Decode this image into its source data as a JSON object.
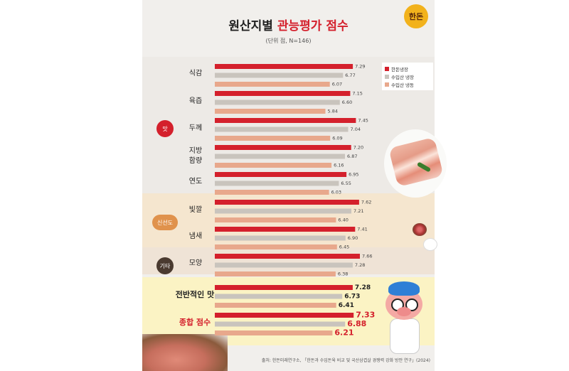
{
  "title_part1": "원산지별",
  "title_part2": "관능평가 점수",
  "subtitle": "(단위 점, N=146)",
  "logo_text": "한돈",
  "colors": {
    "hanwoo": "#d4202c",
    "import_chilled": "#c9c4bd",
    "import_frozen": "#e8a88c"
  },
  "legend": [
    "한돈냉장",
    "수입산 냉장",
    "수입산 냉동"
  ],
  "categories": {
    "taste": "맛",
    "freshness": "신선도",
    "other": "기타"
  },
  "row_labels": {
    "texture": "식감",
    "juiciness": "육즙",
    "thickness": "두께",
    "fat_aroma_1": "지방",
    "fat_aroma_2": "함량",
    "tenderness": "연도",
    "gloss": "빛깔",
    "smell": "냄새",
    "shape": "모양",
    "overall_taste": "전반적인 맛",
    "total": "종합 점수"
  },
  "chart_data": {
    "type": "bar",
    "orientation": "horizontal",
    "title": "원산지별 관능평가 점수",
    "subtitle": "(단위 점, N=146)",
    "categories": [
      "식감",
      "육즙",
      "두께",
      "지방 함량",
      "연도",
      "빛깔",
      "냄새",
      "모양",
      "전반적인 맛",
      "종합 점수"
    ],
    "series": [
      {
        "name": "한돈냉장",
        "values": [
          7.29,
          7.15,
          7.45,
          7.2,
          6.95,
          7.62,
          7.41,
          7.66,
          7.28,
          7.33
        ]
      },
      {
        "name": "수입산 냉장",
        "values": [
          6.77,
          6.6,
          7.04,
          6.87,
          6.55,
          7.21,
          6.9,
          7.28,
          6.73,
          6.88
        ]
      },
      {
        "name": "수입산 냉동",
        "values": [
          6.07,
          5.84,
          6.09,
          6.16,
          6.03,
          6.4,
          6.45,
          6.38,
          6.41,
          6.21
        ]
      }
    ],
    "value_labels": [
      [
        "7.29",
        "6.77",
        "6.07"
      ],
      [
        "7.15",
        "6.60",
        "5.84"
      ],
      [
        "7.45",
        "7.04",
        "6.09"
      ],
      [
        "7.20",
        "6.87",
        "6.16"
      ],
      [
        "6.95",
        "6.55",
        "6.03"
      ],
      [
        "7.62",
        "7.21",
        "6.40"
      ],
      [
        "7.41",
        "6.90",
        "6.45"
      ],
      [
        "7.66",
        "7.28",
        "6.38"
      ],
      [
        "7.28",
        "6.73",
        "6.41"
      ],
      [
        "7.33",
        "6.88",
        "6.21"
      ]
    ],
    "legend_position": "top-right",
    "grid": false
  },
  "source": "출처: 한돈미래연구소, 「한돈과 수입돈육 비교 및 국산삼겹살 경쟁력 강화 방안 연구」(2024)"
}
